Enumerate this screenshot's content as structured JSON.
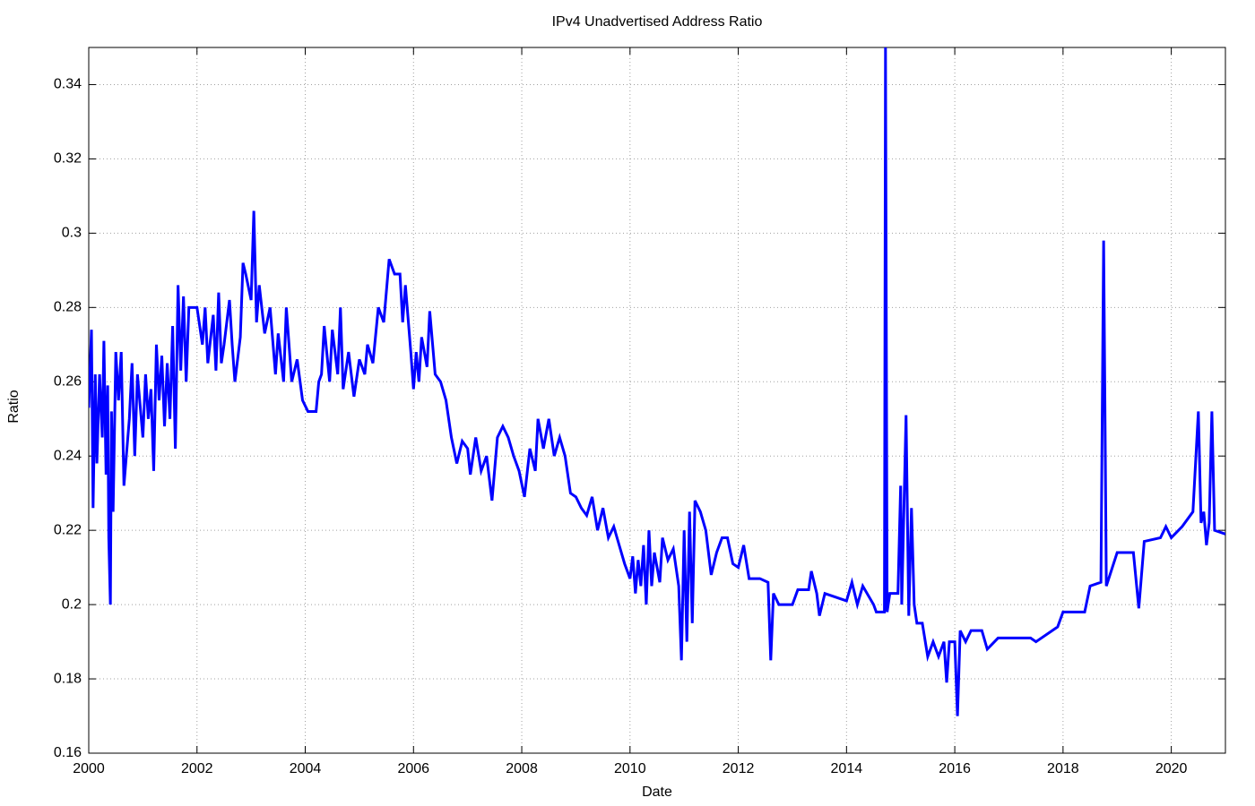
{
  "chart_data": {
    "type": "line",
    "title": "IPv4 Unadvertised Address Ratio",
    "xlabel": "Date",
    "ylabel": "Ratio",
    "color": "#0000ff",
    "grid": true,
    "xlim": [
      2000,
      2021
    ],
    "xticks": [
      2000,
      2002,
      2004,
      2006,
      2008,
      2010,
      2012,
      2014,
      2016,
      2018,
      2020
    ],
    "ylim": [
      0.16,
      0.35
    ],
    "yticks": [
      0.16,
      0.18,
      0.2,
      0.22,
      0.24,
      0.26,
      0.28,
      0.3,
      0.32,
      0.34
    ],
    "x": [
      2000,
      2000.05,
      2000.08,
      2000.12,
      2000.15,
      2000.2,
      2000.25,
      2000.28,
      2000.32,
      2000.35,
      2000.37,
      2000.4,
      2000.42,
      2000.45,
      2000.5,
      2000.55,
      2000.6,
      2000.65,
      2000.75,
      2000.8,
      2000.85,
      2000.9,
      2001.0,
      2001.05,
      2001.1,
      2001.15,
      2001.2,
      2001.25,
      2001.3,
      2001.35,
      2001.4,
      2001.45,
      2001.5,
      2001.55,
      2001.6,
      2001.65,
      2001.7,
      2001.75,
      2001.8,
      2001.85,
      2002.0,
      2002.1,
      2002.15,
      2002.2,
      2002.3,
      2002.35,
      2002.4,
      2002.45,
      2002.5,
      2002.6,
      2002.65,
      2002.7,
      2002.8,
      2002.85,
      2002.9,
      2003.0,
      2003.05,
      2003.1,
      2003.15,
      2003.25,
      2003.35,
      2003.45,
      2003.5,
      2003.6,
      2003.65,
      2003.75,
      2003.85,
      2003.95,
      2004.05,
      2004.2,
      2004.25,
      2004.3,
      2004.35,
      2004.45,
      2004.5,
      2004.6,
      2004.65,
      2004.7,
      2004.8,
      2004.9,
      2005.0,
      2005.1,
      2005.15,
      2005.25,
      2005.35,
      2005.45,
      2005.55,
      2005.65,
      2005.75,
      2005.8,
      2005.85,
      2005.95,
      2006.0,
      2006.05,
      2006.1,
      2006.15,
      2006.25,
      2006.3,
      2006.4,
      2006.5,
      2006.6,
      2006.7,
      2006.8,
      2006.9,
      2007.0,
      2007.05,
      2007.15,
      2007.25,
      2007.35,
      2007.45,
      2007.55,
      2007.65,
      2007.75,
      2007.85,
      2007.95,
      2008.05,
      2008.15,
      2008.25,
      2008.3,
      2008.4,
      2008.5,
      2008.6,
      2008.7,
      2008.8,
      2008.9,
      2009.0,
      2009.1,
      2009.2,
      2009.3,
      2009.4,
      2009.5,
      2009.6,
      2009.7,
      2009.8,
      2009.9,
      2010.0,
      2010.05,
      2010.1,
      2010.15,
      2010.2,
      2010.25,
      2010.3,
      2010.35,
      2010.4,
      2010.45,
      2010.55,
      2010.6,
      2010.7,
      2010.8,
      2010.9,
      2010.95,
      2011.0,
      2011.05,
      2011.1,
      2011.15,
      2011.2,
      2011.3,
      2011.4,
      2011.5,
      2011.6,
      2011.7,
      2011.8,
      2011.9,
      2012.0,
      2012.1,
      2012.2,
      2012.4,
      2012.55,
      2012.6,
      2012.65,
      2012.75,
      2013.0,
      2013.1,
      2013.3,
      2013.35,
      2013.45,
      2013.5,
      2013.6,
      2013.8,
      2014.0,
      2014.1,
      2014.2,
      2014.3,
      2014.5,
      2014.55,
      2014.7,
      2014.72,
      2014.75,
      2014.8,
      2014.95,
      2015.0,
      2015.02,
      2015.1,
      2015.15,
      2015.2,
      2015.25,
      2015.3,
      2015.4,
      2015.5,
      2015.6,
      2015.7,
      2015.8,
      2015.85,
      2015.9,
      2016.0,
      2016.05,
      2016.1,
      2016.2,
      2016.3,
      2016.5,
      2016.6,
      2016.8,
      2017.0,
      2017.4,
      2017.5,
      2017.9,
      2018.0,
      2018.4,
      2018.5,
      2018.7,
      2018.75,
      2018.8,
      2019.0,
      2019.3,
      2019.4,
      2019.5,
      2019.8,
      2019.9,
      2020.0,
      2020.2,
      2020.4,
      2020.5,
      2020.55,
      2020.6,
      2020.65,
      2020.7,
      2020.75,
      2020.8,
      2021.0
    ],
    "values": [
      0.253,
      0.274,
      0.226,
      0.262,
      0.238,
      0.262,
      0.245,
      0.271,
      0.235,
      0.259,
      0.218,
      0.2,
      0.252,
      0.225,
      0.268,
      0.255,
      0.268,
      0.232,
      0.25,
      0.265,
      0.24,
      0.262,
      0.245,
      0.262,
      0.25,
      0.258,
      0.236,
      0.27,
      0.255,
      0.267,
      0.248,
      0.265,
      0.25,
      0.275,
      0.242,
      0.286,
      0.263,
      0.283,
      0.26,
      0.28,
      0.28,
      0.27,
      0.28,
      0.265,
      0.278,
      0.263,
      0.284,
      0.265,
      0.27,
      0.282,
      0.27,
      0.26,
      0.272,
      0.292,
      0.289,
      0.282,
      0.306,
      0.276,
      0.286,
      0.273,
      0.28,
      0.262,
      0.273,
      0.26,
      0.28,
      0.26,
      0.266,
      0.255,
      0.252,
      0.252,
      0.26,
      0.262,
      0.275,
      0.26,
      0.274,
      0.262,
      0.28,
      0.258,
      0.268,
      0.256,
      0.266,
      0.262,
      0.27,
      0.265,
      0.28,
      0.276,
      0.293,
      0.289,
      0.289,
      0.276,
      0.286,
      0.268,
      0.258,
      0.268,
      0.26,
      0.272,
      0.264,
      0.279,
      0.262,
      0.26,
      0.255,
      0.245,
      0.238,
      0.244,
      0.242,
      0.235,
      0.245,
      0.236,
      0.24,
      0.228,
      0.245,
      0.248,
      0.245,
      0.24,
      0.236,
      0.229,
      0.242,
      0.236,
      0.25,
      0.242,
      0.25,
      0.24,
      0.245,
      0.24,
      0.23,
      0.229,
      0.226,
      0.224,
      0.229,
      0.22,
      0.226,
      0.218,
      0.221,
      0.216,
      0.211,
      0.207,
      0.213,
      0.203,
      0.212,
      0.205,
      0.216,
      0.2,
      0.22,
      0.205,
      0.214,
      0.206,
      0.218,
      0.212,
      0.215,
      0.205,
      0.185,
      0.22,
      0.19,
      0.225,
      0.195,
      0.228,
      0.225,
      0.22,
      0.208,
      0.214,
      0.218,
      0.218,
      0.211,
      0.21,
      0.216,
      0.207,
      0.207,
      0.206,
      0.185,
      0.203,
      0.2,
      0.2,
      0.204,
      0.204,
      0.209,
      0.203,
      0.197,
      0.203,
      0.202,
      0.201,
      0.206,
      0.2,
      0.205,
      0.2,
      0.198,
      0.198,
      0.35,
      0.198,
      0.203,
      0.203,
      0.232,
      0.2,
      0.251,
      0.197,
      0.226,
      0.2,
      0.195,
      0.195,
      0.186,
      0.19,
      0.186,
      0.19,
      0.179,
      0.19,
      0.19,
      0.17,
      0.193,
      0.19,
      0.193,
      0.193,
      0.188,
      0.191,
      0.191,
      0.191,
      0.19,
      0.194,
      0.198,
      0.198,
      0.205,
      0.206,
      0.298,
      0.205,
      0.214,
      0.214,
      0.199,
      0.217,
      0.218,
      0.221,
      0.218,
      0.221,
      0.225,
      0.252,
      0.222,
      0.225,
      0.216,
      0.222,
      0.252,
      0.22,
      0.219
    ]
  }
}
